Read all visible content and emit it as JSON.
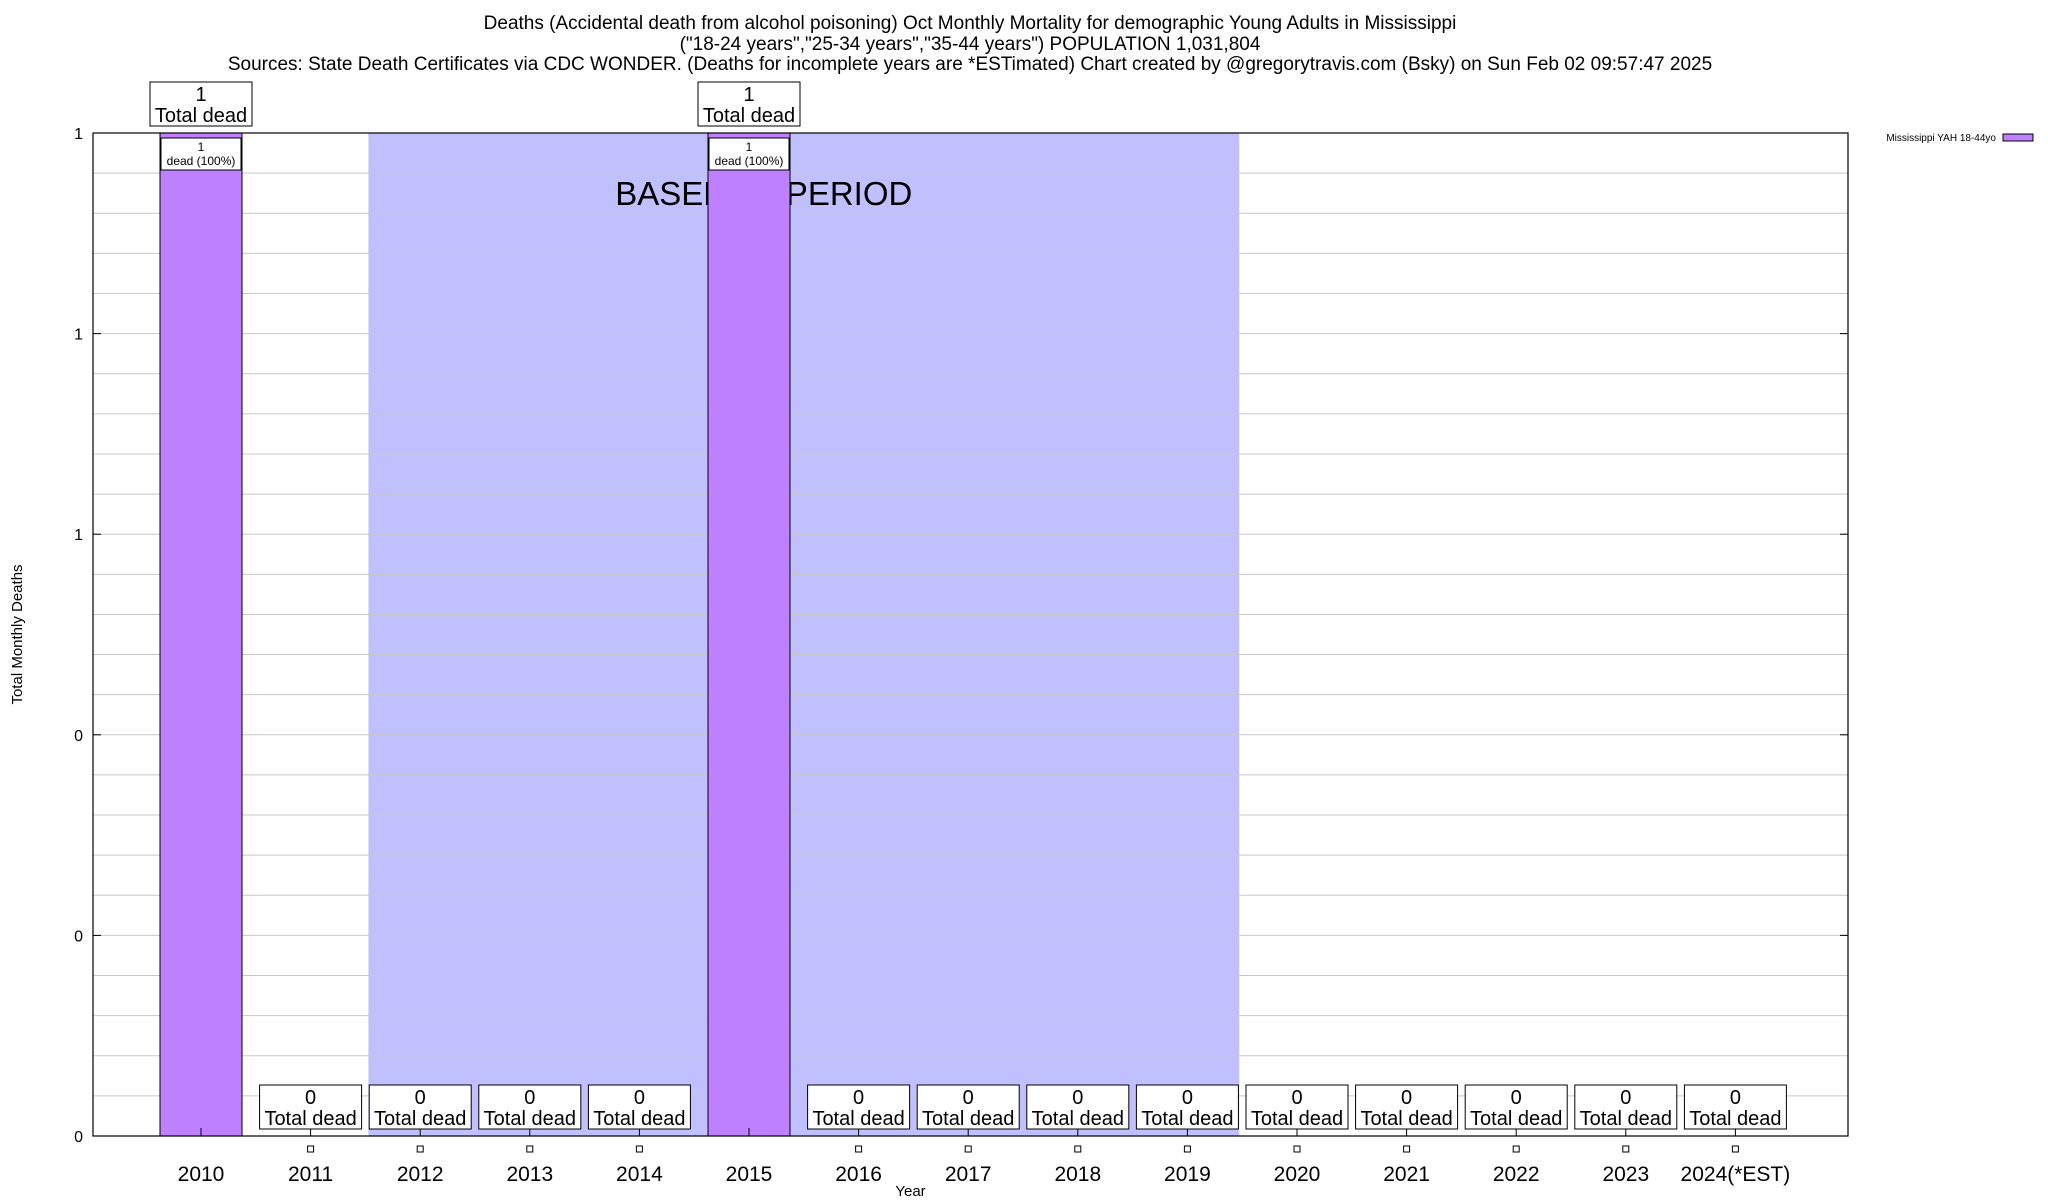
{
  "header": {
    "line1": "Deaths (Accidental death from alcohol poisoning) Oct Monthly Mortality for demographic Young Adults in Mississippi",
    "line2": "(\"18-24 years\",\"25-34 years\",\"35-44 years\") POPULATION 1,031,804",
    "line3": "Sources: State Death Certificates via CDC WONDER. (Deaths for incomplete years are *ESTimated)                Chart created by @gregorytravis.com (Bsky) on Sun Feb 02 09:57:47 2025"
  },
  "chart_data": {
    "type": "bar",
    "title": "Deaths (Accidental death from alcohol poisoning) Oct Monthly Mortality for demographic Young Adults in Mississippi",
    "xlabel": "Year",
    "ylabel": "Total Monthly Deaths",
    "categories": [
      "2010",
      "2011",
      "2012",
      "2013",
      "2014",
      "2015",
      "2016",
      "2017",
      "2018",
      "2019",
      "2020",
      "2021",
      "2022",
      "2023",
      "2024(*EST)"
    ],
    "series": [
      {
        "name": "Mississippi YAH 18-44yo",
        "color": "#bf80ff",
        "values": [
          1,
          0,
          0,
          0,
          0,
          1,
          0,
          0,
          0,
          0,
          0,
          0,
          0,
          0,
          0
        ]
      }
    ],
    "ylim": [
      0,
      1
    ],
    "ytick_labels": [
      "0",
      "0",
      "0",
      "1",
      "1",
      "1"
    ],
    "total_label_suffix": "Total dead",
    "inner_labels": [
      {
        "category": "2010",
        "number": "1",
        "text": "dead (100%)"
      },
      {
        "category": "2015",
        "number": "1",
        "text": "dead (100%)"
      }
    ],
    "baseline": {
      "label": "BASELINE PERIOD",
      "from": "2012",
      "to": "2019",
      "color": "#c0c0ff"
    },
    "grid": true,
    "legend_position": "top-right"
  }
}
